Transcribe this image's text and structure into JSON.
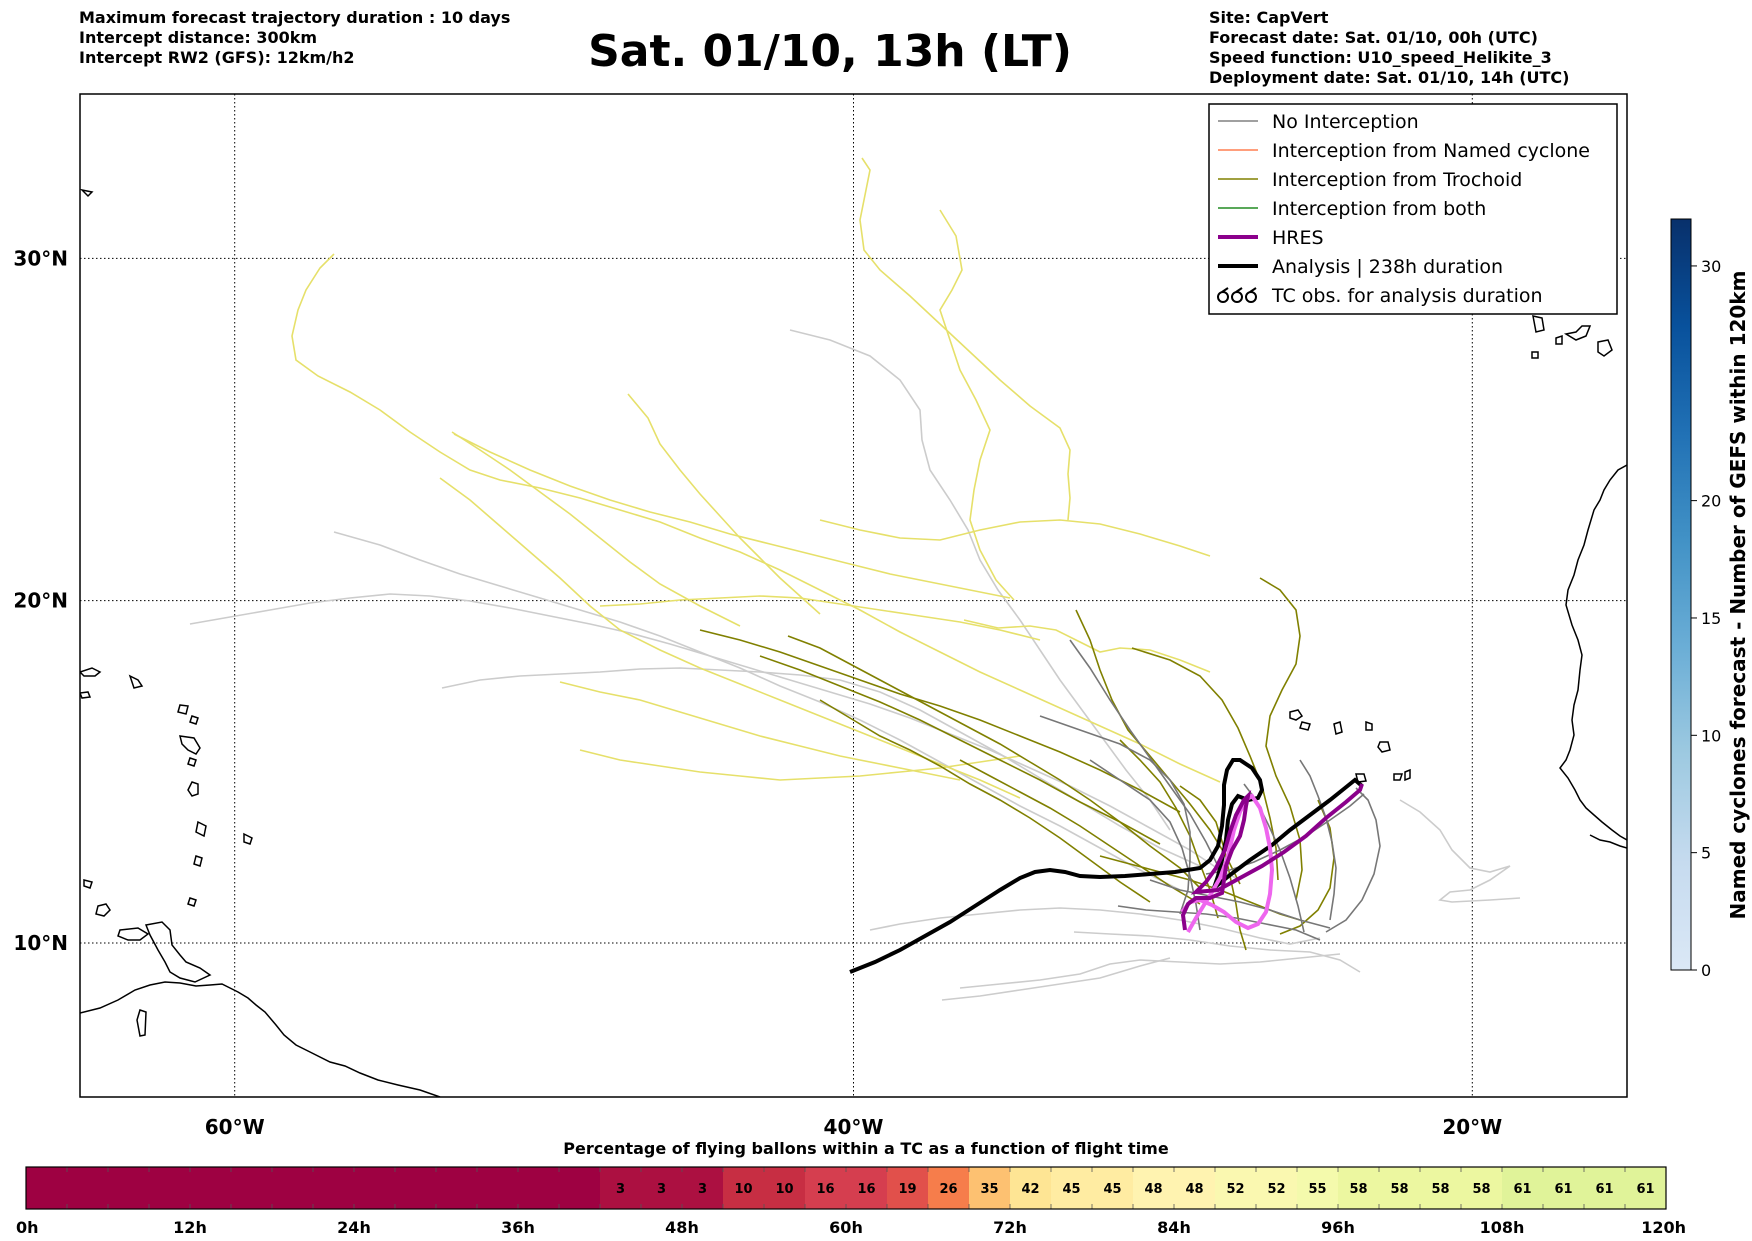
{
  "header_left": [
    "Maximum forecast trajectory duration : 10 days",
    "Intercept distance: 300km",
    "Intercept RW2 (GFS):  12km/h2"
  ],
  "title": "Sat. 01/10, 13h (LT)",
  "header_right": [
    "Site: CapVert",
    "Forecast date: Sat. 01/10, 00h (UTC)",
    "Speed function: U10_speed_Helikite_3",
    "Deployment date: Sat. 01/10, 14h (UTC)"
  ],
  "map": {
    "lon_range": [
      -65,
      -15
    ],
    "lat_range": [
      5.5,
      34.8
    ],
    "lon_labels": [
      {
        "lon": -60,
        "text": "60°W"
      },
      {
        "lon": -40,
        "text": "40°W"
      },
      {
        "lon": -20,
        "text": "20°W"
      }
    ],
    "lat_labels": [
      {
        "lat": 30,
        "text": "30°N"
      },
      {
        "lat": 20,
        "text": "20°N"
      },
      {
        "lat": 10,
        "text": "10°N"
      }
    ],
    "grid": "dotted"
  },
  "legend": {
    "placement": "top-right",
    "items": [
      {
        "label": "No Interception",
        "color": "#808080",
        "style": "thin"
      },
      {
        "label": "Interception from Named cyclone",
        "color": "#ff7f50",
        "style": "thin"
      },
      {
        "label": "Interception from Trochoid",
        "color": "#808000",
        "style": "thin"
      },
      {
        "label": "Interception from both",
        "color": "#228b22",
        "style": "thin"
      },
      {
        "label": "HRES",
        "color": "#8b008b",
        "style": "thick"
      },
      {
        "label": "Analysis | 238h duration",
        "color": "#000000",
        "style": "thick"
      },
      {
        "label": "TC obs. for analysis duration",
        "color": "#000000",
        "style": "glyph"
      }
    ]
  },
  "colorbar": {
    "label": "Named cyclones forecast - Number of GEFS within 120km",
    "range": [
      0,
      32
    ],
    "ticks": [
      "0",
      "5",
      "10",
      "15",
      "20",
      "30"
    ],
    "colors": [
      "#dbe8f6",
      "#c6dbef",
      "#9ecae1",
      "#6baed6",
      "#4292c6",
      "#2171b5",
      "#08519c",
      "#08306b"
    ]
  },
  "flight_bar": {
    "title": "Percentage of flying ballons within a TC as a function of flight time",
    "values": [
      null,
      null,
      null,
      null,
      null,
      null,
      null,
      null,
      null,
      null,
      null,
      null,
      null,
      null,
      3,
      3,
      3,
      10,
      10,
      16,
      16,
      19,
      26,
      35,
      42,
      45,
      45,
      48,
      48,
      52,
      52,
      55,
      58,
      58,
      58,
      58,
      61,
      61,
      61,
      61
    ],
    "value_texts": [
      "",
      "",
      "",
      "",
      "",
      "",
      "",
      "",
      "",
      "",
      "",
      "",
      "",
      "",
      "3",
      "3",
      "3",
      "10",
      "10",
      "16",
      "16",
      "19",
      "26",
      "35",
      "42",
      "45",
      "45",
      "48",
      "48",
      "52",
      "52",
      "55",
      "58",
      "58",
      "58",
      "58",
      "61",
      "61",
      "61",
      "61"
    ],
    "ticks": [
      "0h",
      "12h",
      "24h",
      "36h",
      "48h",
      "60h",
      "72h",
      "84h",
      "96h",
      "108h",
      "120h"
    ]
  }
}
